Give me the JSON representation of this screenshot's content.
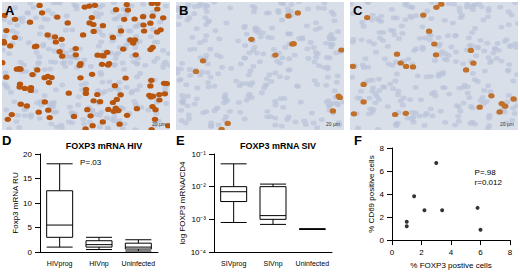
{
  "images": [
    {
      "label": "A",
      "scale_bar": "20 µm"
    },
    {
      "label": "B",
      "scale_bar": "20 µm"
    },
    {
      "label": "C",
      "scale_bar": "20 µm"
    }
  ],
  "chart_data": [
    {
      "type": "boxplot",
      "panel": "D",
      "title": "FOXP3 mRNA HIV",
      "y_label": "Foxp3 mRNA RU",
      "categories": [
        "HIVprog",
        "HIVnp",
        "Uninfected"
      ],
      "values": [
        [
          1,
          3,
          5.5,
          12.5,
          18
        ],
        [
          0.5,
          1,
          1.5,
          2.3,
          3
        ],
        [
          0.2,
          0.6,
          1,
          1.8,
          2.5
        ]
      ],
      "color": "#000000",
      "ylim": [
        0,
        20
      ],
      "yticks": [
        0,
        5,
        10,
        15,
        20
      ],
      "annotations": [
        "P=.03"
      ]
    },
    {
      "type": "boxplot",
      "panel": "E",
      "title": "FOXP3 mRNA SIV",
      "y_label": "log FOXP3 mRNA/CD4",
      "categories": [
        "SIVprog",
        "SIVnp",
        "Uninfected"
      ],
      "values": [
        [
          0.0008,
          0.0035,
          0.007,
          0.01,
          0.05
        ],
        [
          0.0007,
          0.001,
          0.0013,
          0.01,
          0.012
        ],
        [
          0.0005,
          0.0005,
          0.0005,
          0.0005,
          0.0005
        ]
      ],
      "color": "#000000",
      "log": "y",
      "ylim": [
        0.0001,
        0.1
      ],
      "yticks": [
        {
          "value": 0.0001,
          "label": "10⁻⁴"
        },
        {
          "value": 0.001,
          "label": "10⁻³"
        },
        {
          "value": 0.01,
          "label": "10⁻²"
        },
        {
          "value": 0.1,
          "label": "10⁻¹"
        }
      ]
    },
    {
      "type": "scatter",
      "panel": "F",
      "x_label": "% FOXP3 postive cells",
      "y_label": "% CD69 positive cells",
      "x": [
        1,
        1,
        1.5,
        2.2,
        3,
        3.4,
        5.8,
        6
      ],
      "values": [
        1.2,
        1.6,
        3.8,
        2.6,
        6.7,
        2.6,
        2.8,
        0.9
      ],
      "color": "#000000",
      "marker": "circle",
      "xlim": [
        0,
        8
      ],
      "xticks": [
        0,
        2,
        4,
        6,
        8
      ],
      "ylim": [
        0,
        8
      ],
      "yticks": [
        0,
        2,
        4,
        6,
        8
      ],
      "annotations": [
        "P=.98",
        "r=0.012"
      ]
    }
  ]
}
